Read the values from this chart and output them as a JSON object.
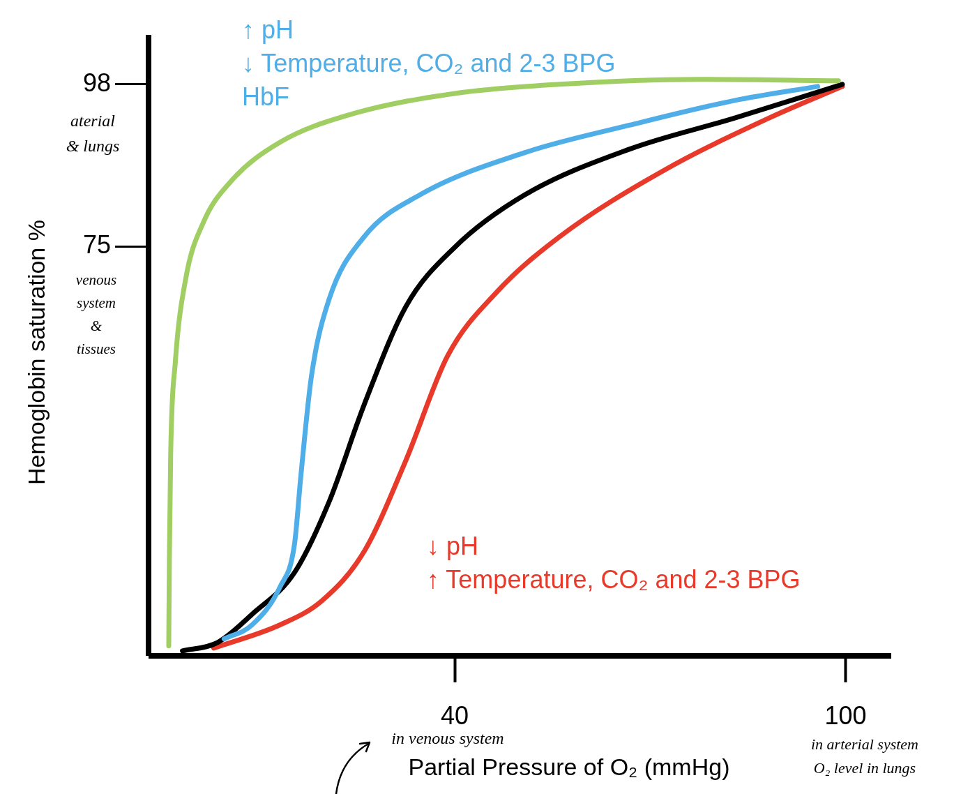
{
  "chart_data": {
    "type": "line",
    "xlabel": "Partial Pressure of O₂ (mmHg)",
    "ylabel": "Hemoglobin saturation %",
    "xlim": [
      -7,
      107
    ],
    "ylim": [
      17,
      105
    ],
    "xticks": [
      40,
      100
    ],
    "yticks": [
      75,
      98
    ],
    "grid": false,
    "legend": false,
    "marker": "none",
    "line_style": "solid",
    "series": [
      {
        "color": "#a0ce63",
        "x": [
          -3.9,
          -3.8,
          -3.6,
          -2.9,
          -1.3,
          1.4,
          5.7,
          13.2,
          23.9,
          40,
          56.1,
          77.5,
          98.9
        ],
        "values": [
          18.4,
          30.8,
          45.7,
          58.5,
          70.4,
          78.4,
          84.3,
          89.8,
          93.7,
          96.7,
          98,
          98.7,
          98.5
        ]
      },
      {
        "color": "#4faee8",
        "x": [
          4.6,
          8.9,
          13.2,
          15.4,
          16.4,
          18.0,
          20.7,
          26.1,
          34.6,
          50.7,
          66.8,
          82.9,
          95.7
        ],
        "values": [
          19.4,
          21.4,
          26.8,
          32.8,
          42.7,
          56.6,
          67.5,
          76.4,
          82.3,
          88.3,
          92.2,
          95.7,
          97.7
        ]
      },
      {
        "color": "#000000",
        "x": [
          -1.8,
          3.6,
          8.9,
          15.4,
          20.7,
          26.1,
          32.5,
          40,
          50.7,
          66.8,
          82.9,
          99.5
        ],
        "values": [
          17.7,
          18.9,
          22.9,
          28.8,
          38.8,
          52.6,
          66.5,
          74.9,
          82.3,
          88.8,
          93.2,
          98
        ]
      },
      {
        "color": "#e83a2a",
        "x": [
          3.0,
          13.2,
          19.6,
          26.1,
          32.5,
          38.9,
          46.4,
          56.1,
          72.1,
          88.2,
          99.5
        ],
        "values": [
          18.1,
          21.4,
          24.8,
          31.8,
          44.7,
          59.5,
          68.5,
          76.4,
          85.8,
          93.2,
          97.7
        ]
      }
    ],
    "annotations": [
      "↑ pH\n↓ Temperature, CO₂ and 2-3 BPG\nHbF",
      "↓ pH\n↑ Temperature, CO₂ and 2-3 BPG",
      "aterial\n& lungs",
      "venous\nsystem\n&\ntissues",
      "in venous system",
      "in arterial system\nO₂ level in lungs"
    ]
  }
}
